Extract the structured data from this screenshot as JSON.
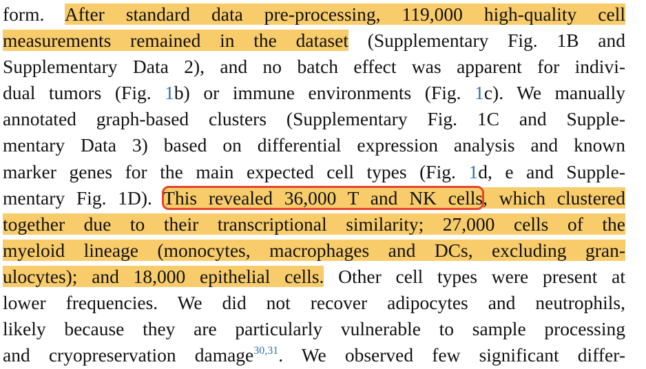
{
  "lines": [
    {
      "segments": [
        {
          "text": "form. "
        },
        {
          "text": "After standard data pre-processing, 119,000 high-quality cell",
          "highlight": true
        }
      ]
    },
    {
      "segments": [
        {
          "text": "measurements remained in the dataset",
          "highlight": true
        },
        {
          "text": " (Supplementary Fig. 1B and"
        }
      ]
    },
    {
      "segments": [
        {
          "text": "Supplementary Data 2), and no batch effect was apparent for indivi-"
        }
      ]
    },
    {
      "segments": [
        {
          "text": "dual tumors (Fig. "
        },
        {
          "text": "1",
          "link": true
        },
        {
          "text": "b) or immune environments (Fig. "
        },
        {
          "text": "1",
          "link": true
        },
        {
          "text": "c). We manually"
        }
      ]
    },
    {
      "segments": [
        {
          "text": "annotated graph-based clusters (Supplementary Fig. 1C and Supple-"
        }
      ]
    },
    {
      "segments": [
        {
          "text": "mentary Data 3) based on differential expression analysis and known"
        }
      ]
    },
    {
      "segments": [
        {
          "text": "marker genes for the main expected cell types (Fig. "
        },
        {
          "text": "1",
          "link": true
        },
        {
          "text": "d, e and Supple-"
        }
      ]
    },
    {
      "segments": [
        {
          "text": "mentary Fig. 1D). "
        },
        {
          "text": "This revealed 36,000 T and NK cells",
          "highlight": true,
          "boxed": true
        },
        {
          "text": ", which clustered",
          "highlight": true
        }
      ]
    },
    {
      "segments": [
        {
          "text": "together due to their transcriptional similarity; 27,000 cells of the",
          "highlight": true
        }
      ]
    },
    {
      "segments": [
        {
          "text": "myeloid lineage (monocytes, macrophages and DCs, excluding gran-",
          "highlight": true
        }
      ]
    },
    {
      "segments": [
        {
          "text": "ulocytes); and 18,000 epithelial cells.",
          "highlight": true
        },
        {
          "text": " Other cell types were present at"
        }
      ]
    },
    {
      "segments": [
        {
          "text": "lower frequencies. We did not recover adipocytes and neutrophils,"
        }
      ]
    },
    {
      "segments": [
        {
          "text": "likely because they are particularly vulnerable to sample processing"
        }
      ]
    },
    {
      "segments": [
        {
          "text": "and cryopreservation damage"
        },
        {
          "text": "30,31",
          "link": true,
          "superscript": true
        },
        {
          "text": ". We observed few significant differ-"
        }
      ]
    }
  ]
}
